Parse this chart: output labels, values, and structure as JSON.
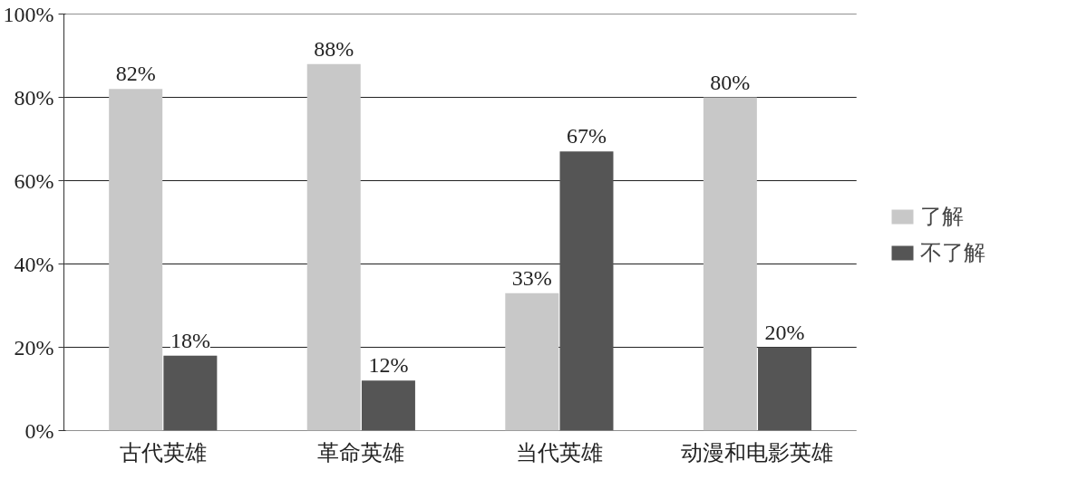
{
  "chart_data": {
    "type": "bar",
    "categories": [
      "古代英雄",
      "革命英雄",
      "当代英雄",
      "动漫和电影英雄"
    ],
    "series": [
      {
        "name": "了解",
        "color": "#c8c8c8",
        "values": [
          82,
          88,
          33,
          80
        ],
        "value_labels": [
          "82%",
          "88%",
          "33%",
          "80%"
        ]
      },
      {
        "name": "不了解",
        "color": "#555555",
        "values": [
          18,
          12,
          67,
          20
        ],
        "value_labels": [
          "18%",
          "12%",
          "67%",
          "20%"
        ]
      }
    ],
    "ylim": [
      0,
      100
    ],
    "yticks": [
      {
        "value": 0,
        "label": "0%"
      },
      {
        "value": 20,
        "label": "20%"
      },
      {
        "value": 40,
        "label": "40%"
      },
      {
        "value": 60,
        "label": "60%"
      },
      {
        "value": 80,
        "label": "80%"
      },
      {
        "value": 100,
        "label": "100%"
      }
    ],
    "grid": "y",
    "legend": "right"
  }
}
